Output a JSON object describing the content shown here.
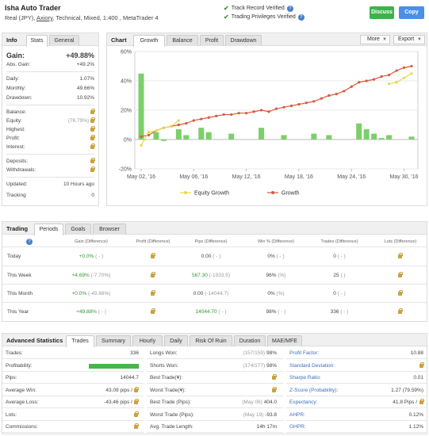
{
  "header": {
    "title": "Isha Auto Trader",
    "sub_prefix": "Real (JPY), ",
    "broker": "Axiory",
    "sub_suffix": ", Technical, Mixed, 1:400 , MetaTrader 4",
    "verified_1": "Track Record Verified",
    "verified_2": "Trading Privileges Verified",
    "discuss_label": "Discuss",
    "copy_label": "Copy",
    "icons": {
      "check": "check-icon",
      "help": "question-icon"
    }
  },
  "info": {
    "tab_title": "Info",
    "tabs": [
      "Stats",
      "General"
    ],
    "gain_label": "Gain:",
    "gain_value": "+49.88%",
    "abs_gain_label": "Abs. Gain:",
    "abs_gain_value": "+49.2%",
    "daily_label": "Daily:",
    "daily_value": "1.07%",
    "monthly_label": "Monthly:",
    "monthly_value": "49.66%",
    "drawdown_label": "Drawdown:",
    "drawdown_value": "10.92%",
    "balance_label": "Balance:",
    "equity_label": "Equity:",
    "equity_value": "(76.79%)",
    "highest_label": "Highest:",
    "profit_label": "Profit:",
    "interest_label": "Interest:",
    "deposits_label": "Deposits:",
    "withdrawals_label": "Withdrawals:",
    "updated_label": "Updated:",
    "updated_value": "10 Hours ago",
    "tracking_label": "Tracking",
    "tracking_value": "0"
  },
  "chart_panel": {
    "title": "Chart",
    "tabs": [
      "Growth",
      "Balance",
      "Profit",
      "Drawdown"
    ],
    "more_label": "More",
    "export_label": "Export"
  },
  "chart_data": {
    "type": "line",
    "y_ticks": [
      "60%",
      "40%",
      "20%",
      "0%",
      "-20%"
    ],
    "x_ticks": [
      "May 02, '16",
      "May 06, '16",
      "May 12, '16",
      "May 18, '16",
      "May 24, '16",
      "May 30, '16"
    ],
    "ylim": [
      -20,
      60
    ],
    "legend": [
      "Equity Growth",
      "Growth"
    ],
    "colors": {
      "equity": "#e6d84a",
      "growth": "#d85a3a",
      "bars": "#7ccf6a"
    },
    "growth": [
      2,
      3,
      6,
      8,
      9,
      10,
      11,
      13,
      14,
      15,
      16,
      17,
      17,
      18,
      18,
      19,
      20,
      19,
      21,
      22,
      23,
      24,
      25,
      26,
      28,
      30,
      31,
      33,
      36,
      39,
      40,
      41,
      43,
      44,
      47,
      49,
      50
    ],
    "equity": [
      -4,
      5,
      6,
      8,
      9,
      13
    ],
    "equity_tail": [
      38,
      39,
      42,
      45
    ],
    "bars": [
      45,
      0,
      5,
      -1,
      0,
      7,
      3,
      0,
      8,
      5,
      0,
      0,
      4,
      0,
      0,
      0,
      8,
      0,
      0,
      3,
      0,
      0,
      0,
      4,
      0,
      3,
      0,
      0,
      0,
      11,
      7,
      4,
      1,
      3,
      0,
      0,
      2
    ]
  },
  "trading": {
    "title": "Trading",
    "tabs": [
      "Periods",
      "Goals",
      "Browser"
    ],
    "headers": [
      "Gain (Difference)",
      "Profit (Difference)",
      "Pips (Difference)",
      "Win % (Difference)",
      "Trades (Difference)",
      "Lots (Difference)"
    ],
    "rows": [
      {
        "label": "Today",
        "gain": "+0.0%",
        "gain_d": "( - )",
        "pips": "0.00",
        "pips_d": "( - )",
        "win": "0%",
        "win_d": "( - )",
        "trades": "0",
        "trades_d": "( - )"
      },
      {
        "label": "This Week",
        "gain": "+4.69%",
        "gain_d": "(-7.70%)",
        "pips": "567.30",
        "pips_d": "(-1933.5)",
        "win": "96%",
        "win_d": "(%)",
        "trades": "25",
        "trades_d": "( )"
      },
      {
        "label": "This Month",
        "gain": "+0.0%",
        "gain_d": "(-49.88%)",
        "pips": "0.00",
        "pips_d": "(-14044.7)",
        "win": "0%",
        "win_d": "(%)",
        "trades": "0",
        "trades_d": "( - )"
      },
      {
        "label": "This Year",
        "gain": "+49.88%",
        "gain_d": "( - )",
        "pips": "14044.70",
        "pips_d": "( - )",
        "win": "98%",
        "win_d": "( - )",
        "trades": "336",
        "trades_d": "( - )"
      }
    ]
  },
  "advanced": {
    "title": "Advanced Statistics",
    "tabs": [
      "Trades",
      "Summary",
      "Hourly",
      "Daily",
      "Risk Of Ruin",
      "Duration",
      "MAE/MFE"
    ],
    "col1": [
      {
        "label": "Trades:",
        "value": "336"
      },
      {
        "label": "Profitability:",
        "value": ""
      },
      {
        "label": "Pips:",
        "value": "14044.7"
      },
      {
        "label": "Average Win:",
        "value": "43.09 pips /"
      },
      {
        "label": "Average Loss:",
        "value": "-43.46 pips /"
      },
      {
        "label": "Lots:",
        "value": ""
      },
      {
        "label": "Commissions:",
        "value": ""
      }
    ],
    "col2": [
      {
        "label": "Longs Won:",
        "paren": "(157/159)",
        "value": "98%"
      },
      {
        "label": "Shorts Won:",
        "paren": "(174/177)",
        "value": "98%"
      },
      {
        "label": "Best Trade(¥):",
        "paren": "",
        "value": ""
      },
      {
        "label": "Worst Trade(¥):",
        "paren": "",
        "value": ""
      },
      {
        "label": "Best Trade (Pips):",
        "paren": "(May 06)",
        "value": "404.0"
      },
      {
        "label": "Worst Trade (Pips):",
        "paren": "(May 19)",
        "value": "-93.8"
      },
      {
        "label": "Avg. Trade Length:",
        "paren": "",
        "value": "14h 17m"
      }
    ],
    "col3": [
      {
        "label": "Profit Factor:",
        "value": "10.88"
      },
      {
        "label": "Standard Deviation:",
        "value": ""
      },
      {
        "label": "Sharpe Ratio:",
        "value": "0.01"
      },
      {
        "label": "Z-Score (Probability):",
        "value": "1.27 (79.59%)"
      },
      {
        "label": "Expectancy:",
        "value": "41.8 Pips /"
      },
      {
        "label": "AHPR:",
        "value": "0.12%"
      },
      {
        "label": "GHPR:",
        "value": "1.12%"
      }
    ],
    "profitability_pct": 98
  }
}
